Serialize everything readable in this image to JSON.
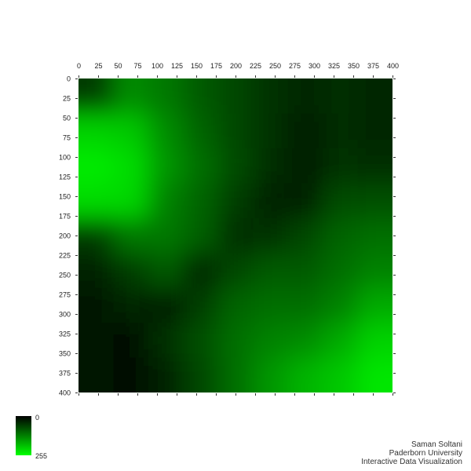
{
  "chart_data": {
    "type": "heatmap",
    "title": "",
    "xlabel": "",
    "ylabel": "",
    "x_ticks": [
      0,
      25,
      50,
      75,
      100,
      125,
      150,
      175,
      200,
      225,
      250,
      275,
      300,
      325,
      350,
      375,
      400
    ],
    "y_ticks": [
      0,
      25,
      50,
      75,
      100,
      125,
      150,
      175,
      200,
      225,
      250,
      275,
      300,
      325,
      350,
      375,
      400
    ],
    "xlim": [
      0,
      400
    ],
    "ylim": [
      0,
      400
    ],
    "colorscale": {
      "min": 0,
      "max": 255,
      "min_color": "#000000",
      "max_color": "#00ff00"
    },
    "description_grid_rows": 9,
    "description_grid_cols": 9,
    "values": [
      [
        60,
        140,
        120,
        90,
        70,
        50,
        40,
        45,
        40
      ],
      [
        210,
        200,
        140,
        100,
        70,
        50,
        30,
        45,
        40
      ],
      [
        235,
        220,
        150,
        110,
        75,
        45,
        30,
        50,
        45
      ],
      [
        220,
        215,
        130,
        100,
        60,
        35,
        35,
        75,
        80
      ],
      [
        60,
        120,
        120,
        95,
        45,
        50,
        70,
        100,
        110
      ],
      [
        35,
        60,
        90,
        40,
        70,
        90,
        90,
        110,
        130
      ],
      [
        25,
        40,
        30,
        60,
        100,
        110,
        110,
        130,
        170
      ],
      [
        20,
        15,
        50,
        80,
        110,
        130,
        140,
        170,
        210
      ],
      [
        20,
        15,
        35,
        70,
        110,
        150,
        180,
        200,
        230
      ]
    ]
  },
  "legend": {
    "min_label": "0",
    "max_label": "255"
  },
  "credits": {
    "line1": "Saman Soltani",
    "line2": "Paderborn University",
    "line3": "Interactive Data Visualization"
  }
}
